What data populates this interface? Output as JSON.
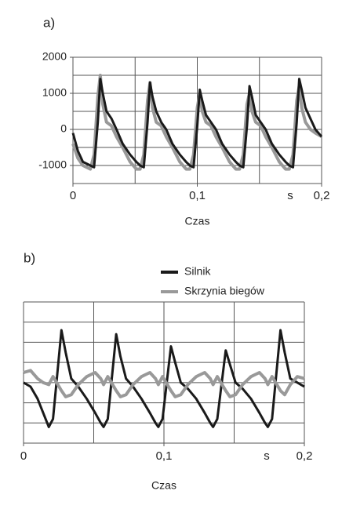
{
  "chart_data": [
    {
      "type": "line",
      "title": "a)",
      "xlabel": "Czas",
      "xunit": "s",
      "x": [
        0,
        0.004,
        0.008,
        0.014,
        0.017,
        0.02,
        0.022,
        0.024,
        0.027,
        0.031,
        0.035,
        0.04,
        0.046,
        0.051,
        0.054,
        0.057,
        0.06,
        0.062,
        0.064,
        0.067,
        0.071,
        0.075,
        0.08,
        0.086,
        0.091,
        0.094,
        0.097,
        0.1,
        0.102,
        0.104,
        0.107,
        0.111,
        0.115,
        0.12,
        0.126,
        0.131,
        0.134,
        0.137,
        0.14,
        0.142,
        0.144,
        0.147,
        0.151,
        0.155,
        0.16,
        0.166,
        0.171,
        0.174,
        0.177,
        0.18,
        0.182,
        0.184,
        0.187,
        0.191,
        0.195,
        0.2
      ],
      "series": [
        {
          "color": "#999999",
          "values": [
            -400,
            -800,
            -1000,
            -1100,
            -700,
            900,
            1500,
            700,
            200,
            100,
            -200,
            -500,
            -900,
            -1100,
            -1100,
            -700,
            800,
            1300,
            600,
            200,
            100,
            -200,
            -500,
            -900,
            -1100,
            -1100,
            -700,
            600,
            1000,
            500,
            200,
            100,
            -200,
            -500,
            -900,
            -1100,
            -1100,
            -700,
            700,
            1000,
            500,
            200,
            100,
            -200,
            -500,
            -900,
            -1100,
            -1100,
            -700,
            800,
            1200,
            600,
            200,
            0,
            -100,
            -200
          ]
        },
        {
          "color": "#1a1a1a",
          "values": [
            -100,
            -600,
            -900,
            -1000,
            -1050,
            200,
            1400,
            1000,
            500,
            300,
            0,
            -400,
            -700,
            -900,
            -1000,
            -1050,
            200,
            1300,
            900,
            500,
            200,
            0,
            -400,
            -700,
            -900,
            -1000,
            -1050,
            100,
            1100,
            800,
            400,
            200,
            0,
            -400,
            -700,
            -900,
            -1000,
            -1050,
            100,
            1200,
            900,
            400,
            200,
            0,
            -400,
            -700,
            -900,
            -1000,
            -1050,
            200,
            1400,
            1100,
            600,
            300,
            0,
            -200
          ]
        }
      ],
      "xlim": [
        0,
        0.2
      ],
      "xticks": [
        0,
        {
          "value": 0.1,
          "label": "0,1"
        },
        {
          "value": 0.2,
          "label": "0,2"
        }
      ],
      "ylim": [
        -1500,
        2000
      ],
      "yticks": [
        -1000,
        0,
        1000,
        2000
      ],
      "xgrid": [
        0,
        0.05,
        0.1,
        0.15,
        0.2
      ],
      "ygrid": [
        -1500,
        -1000,
        -500,
        0,
        500,
        1000,
        1500,
        2000
      ]
    },
    {
      "type": "line",
      "title": "b)",
      "xlabel": "Czas",
      "xunit": "s",
      "x": [
        0,
        0.005,
        0.01,
        0.014,
        0.018,
        0.021,
        0.027,
        0.03,
        0.034,
        0.039,
        0.045,
        0.051,
        0.055,
        0.057,
        0.06,
        0.066,
        0.069,
        0.073,
        0.078,
        0.084,
        0.09,
        0.094,
        0.096,
        0.099,
        0.105,
        0.108,
        0.112,
        0.117,
        0.123,
        0.129,
        0.133,
        0.135,
        0.138,
        0.144,
        0.147,
        0.151,
        0.156,
        0.162,
        0.168,
        0.172,
        0.174,
        0.177,
        0.183,
        0.186,
        0.19,
        0.195,
        0.2
      ],
      "series": [
        {
          "name": "Silnik",
          "color": "#1a1a1a",
          "values": [
            3.0,
            2.8,
            2.2,
            1.5,
            0.8,
            1.2,
            5.6,
            4.5,
            3.2,
            2.8,
            2.2,
            1.5,
            1.0,
            0.8,
            1.2,
            5.4,
            4.3,
            3.2,
            2.8,
            2.2,
            1.5,
            1.0,
            0.8,
            1.2,
            4.8,
            4.0,
            3.0,
            2.7,
            2.2,
            1.5,
            1.0,
            0.8,
            1.2,
            4.6,
            3.9,
            3.0,
            2.7,
            2.2,
            1.5,
            1.0,
            0.8,
            1.2,
            5.6,
            4.5,
            3.2,
            3.0,
            2.8
          ]
        },
        {
          "name": "Skrzynia biegów",
          "color": "#999999",
          "values": [
            3.5,
            3.6,
            3.2,
            3.0,
            2.9,
            3.3,
            2.6,
            2.3,
            2.4,
            2.9,
            3.3,
            3.5,
            3.2,
            2.9,
            3.3,
            2.6,
            2.3,
            2.4,
            2.9,
            3.3,
            3.5,
            3.2,
            2.9,
            3.3,
            2.6,
            2.3,
            2.4,
            2.9,
            3.3,
            3.5,
            3.2,
            2.9,
            3.3,
            2.6,
            2.3,
            2.4,
            2.9,
            3.3,
            3.5,
            3.2,
            2.9,
            3.3,
            2.6,
            2.4,
            2.9,
            3.3,
            3.2
          ]
        }
      ],
      "xlim": [
        0,
        0.2
      ],
      "xticks": [
        0,
        {
          "value": 0.1,
          "label": "0,1"
        },
        {
          "value": 0.2,
          "label": "0,2"
        }
      ],
      "ylim": [
        0,
        7
      ],
      "xgrid": [
        0,
        0.05,
        0.1,
        0.15,
        0.2
      ],
      "ygrid": [
        0,
        1,
        2,
        3,
        4,
        5,
        6,
        7
      ]
    }
  ]
}
